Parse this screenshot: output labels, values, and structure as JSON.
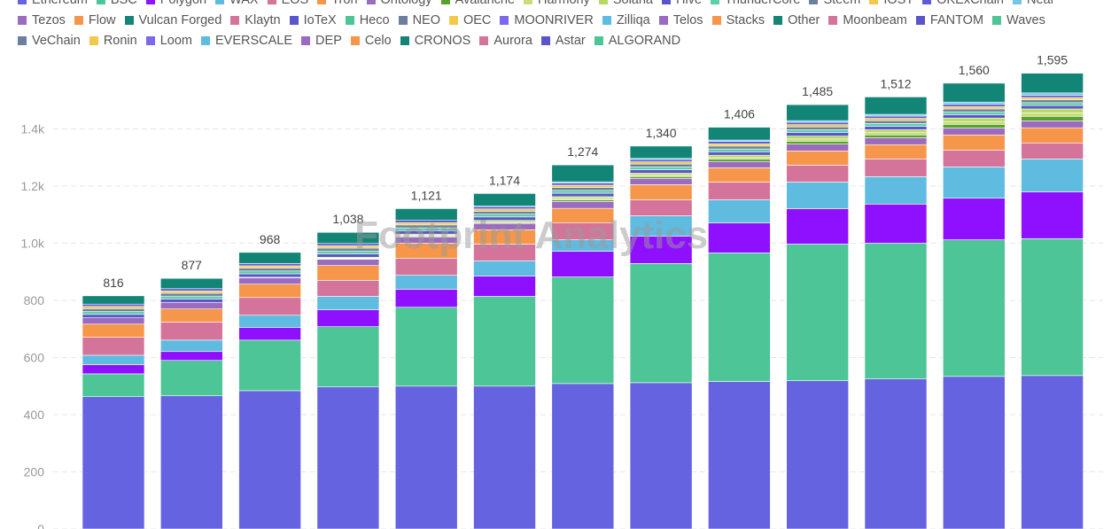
{
  "legend_rows": [
    [
      {
        "name": "Ethereum",
        "color": "#6563e0"
      },
      {
        "name": "BSC",
        "color": "#4ec596"
      },
      {
        "name": "Polygon",
        "color": "#8f10ff"
      },
      {
        "name": "WAX",
        "color": "#5fbbe0"
      },
      {
        "name": "EOS",
        "color": "#d4749a"
      },
      {
        "name": "Tron",
        "color": "#f5964a"
      },
      {
        "name": "Ontology",
        "color": "#9b6bc0"
      },
      {
        "name": "Avalanche",
        "color": "#5aa02c"
      },
      {
        "name": "Harmony",
        "color": "#c5e07a"
      },
      {
        "name": "Solana",
        "color": "#b9d85f"
      },
      {
        "name": "Hive",
        "color": "#5a55c8"
      },
      {
        "name": "ThunderCore",
        "color": "#5ecfa8"
      },
      {
        "name": "Steem",
        "color": "#6d7fa0"
      },
      {
        "name": "IOST",
        "color": "#f2c94c"
      },
      {
        "name": "OKExChain",
        "color": "#5e5ad8"
      },
      {
        "name": "Near",
        "color": "#75c6e6"
      }
    ],
    [
      {
        "name": "Tezos",
        "color": "#9b6bc0"
      },
      {
        "name": "Flow",
        "color": "#f5964a"
      },
      {
        "name": "Vulcan Forged",
        "color": "#138577"
      },
      {
        "name": "Klaytn",
        "color": "#d4749a"
      },
      {
        "name": "IoTeX",
        "color": "#5a55c8"
      },
      {
        "name": "Heco",
        "color": "#4ec596"
      },
      {
        "name": "NEO",
        "color": "#6d7fa0"
      },
      {
        "name": "OEC",
        "color": "#f2c94c"
      },
      {
        "name": "MOONRIVER",
        "color": "#7b68ee"
      },
      {
        "name": "Zilliqa",
        "color": "#5fbbe0"
      },
      {
        "name": "Telos",
        "color": "#9b6bc0"
      },
      {
        "name": "Stacks",
        "color": "#f5964a"
      },
      {
        "name": "Other",
        "color": "#138577"
      },
      {
        "name": "Moonbeam",
        "color": "#d4749a"
      },
      {
        "name": "FANTOM",
        "color": "#5a55c8"
      },
      {
        "name": "Waves",
        "color": "#4ec596"
      }
    ],
    [
      {
        "name": "VeChain",
        "color": "#6d7fa0"
      },
      {
        "name": "Ronin",
        "color": "#f2c94c"
      },
      {
        "name": "Loom",
        "color": "#7b68ee"
      },
      {
        "name": "EVERSCALE",
        "color": "#5fbbe0"
      },
      {
        "name": "DEP",
        "color": "#9b6bc0"
      },
      {
        "name": "Celo",
        "color": "#f5964a"
      },
      {
        "name": "CRONOS",
        "color": "#138577"
      },
      {
        "name": "Aurora",
        "color": "#d4749a"
      },
      {
        "name": "Astar",
        "color": "#5a55c8"
      },
      {
        "name": "ALGORAND",
        "color": "#4ec596"
      }
    ]
  ],
  "watermark": "Footprint Analytics",
  "chart_data": {
    "type": "bar",
    "stacked": true,
    "ylim": [
      0,
      1600
    ],
    "yticks": [
      0,
      200,
      400,
      600,
      800,
      1000,
      1200,
      1400
    ],
    "ytick_labels": [
      "0",
      "200",
      "400",
      "600",
      "800",
      "1.0k",
      "1.2k",
      "1.4k"
    ],
    "grid": true,
    "legend_position": "top",
    "totals": [
      816,
      877,
      968,
      1038,
      1121,
      1174,
      1274,
      1340,
      1406,
      1485,
      1512,
      1560,
      1595
    ],
    "total_labels": [
      "816",
      "877",
      "968",
      "1,038",
      "1,121",
      "1,174",
      "1,274",
      "1,340",
      "1,406",
      "1,485",
      "1,512",
      "1,560",
      "1,595"
    ],
    "series": [
      {
        "name": "Ethereum",
        "color": "#6563e0",
        "values": [
          463,
          466,
          484,
          497,
          500,
          500,
          509,
          512,
          516,
          519,
          525,
          534,
          537
        ]
      },
      {
        "name": "BSC",
        "color": "#4ec596",
        "values": [
          80,
          124,
          177,
          211,
          276,
          314,
          373,
          417,
          450,
          478,
          475,
          478,
          479
        ]
      },
      {
        "name": "Polygon",
        "color": "#8f10ff",
        "values": [
          32,
          31,
          44,
          59,
          63,
          71,
          90,
          96,
          105,
          124,
          137,
          146,
          164
        ]
      },
      {
        "name": "WAX",
        "color": "#5fbbe0",
        "values": [
          33,
          40,
          43,
          47,
          49,
          53,
          40,
          71,
          81,
          93,
          96,
          109,
          115
        ]
      },
      {
        "name": "EOS",
        "color": "#d4749a",
        "values": [
          63,
          63,
          62,
          56,
          59,
          59,
          60,
          56,
          62,
          59,
          62,
          59,
          56
        ]
      },
      {
        "name": "Tron",
        "color": "#f5964a",
        "values": [
          46,
          46,
          47,
          52,
          53,
          50,
          50,
          53,
          50,
          50,
          50,
          53,
          53
        ]
      },
      {
        "name": "Ontology",
        "color": "#9b6bc0",
        "values": [
          22,
          23,
          22,
          22,
          22,
          22,
          24,
          22,
          22,
          24,
          24,
          24,
          24
        ]
      },
      {
        "name": "Avalanche",
        "color": "#5aa02c",
        "values": [
          0,
          0,
          0,
          2,
          3,
          3,
          6,
          6,
          8,
          10,
          10,
          13,
          16
        ]
      },
      {
        "name": "Harmony",
        "color": "#c5e07a",
        "values": [
          0,
          0,
          0,
          2,
          3,
          3,
          5,
          6,
          6,
          8,
          8,
          10,
          12
        ]
      },
      {
        "name": "Solana",
        "color": "#b9d85f",
        "values": [
          0,
          0,
          2,
          3,
          4,
          5,
          6,
          6,
          8,
          10,
          10,
          12,
          14
        ]
      },
      {
        "name": "Hive",
        "color": "#5a55c8",
        "values": [
          12,
          12,
          12,
          12,
          12,
          12,
          12,
          12,
          12,
          12,
          12,
          12,
          12
        ]
      },
      {
        "name": "ThunderCore",
        "color": "#5ecfa8",
        "values": [
          10,
          10,
          10,
          10,
          10,
          10,
          10,
          10,
          10,
          10,
          10,
          10,
          10
        ]
      },
      {
        "name": "Steem",
        "color": "#6d7fa0",
        "values": [
          10,
          10,
          10,
          10,
          10,
          10,
          10,
          10,
          10,
          10,
          10,
          10,
          10
        ]
      },
      {
        "name": "IOST",
        "color": "#f2c94c",
        "values": [
          8,
          8,
          8,
          8,
          8,
          8,
          8,
          8,
          8,
          8,
          8,
          8,
          8
        ]
      },
      {
        "name": "OKExChain",
        "color": "#5e5ad8",
        "values": [
          8,
          8,
          8,
          8,
          8,
          8,
          8,
          8,
          8,
          8,
          8,
          8,
          8
        ]
      },
      {
        "name": "Near",
        "color": "#75c6e6",
        "values": [
          0,
          0,
          0,
          0,
          0,
          2,
          4,
          4,
          5,
          6,
          6,
          8,
          8
        ]
      },
      {
        "name": "Other",
        "color": "#138577",
        "values": [
          29,
          36,
          39,
          39,
          41,
          44,
          59,
          43,
          45,
          56,
          61,
          66,
          69
        ]
      }
    ]
  }
}
